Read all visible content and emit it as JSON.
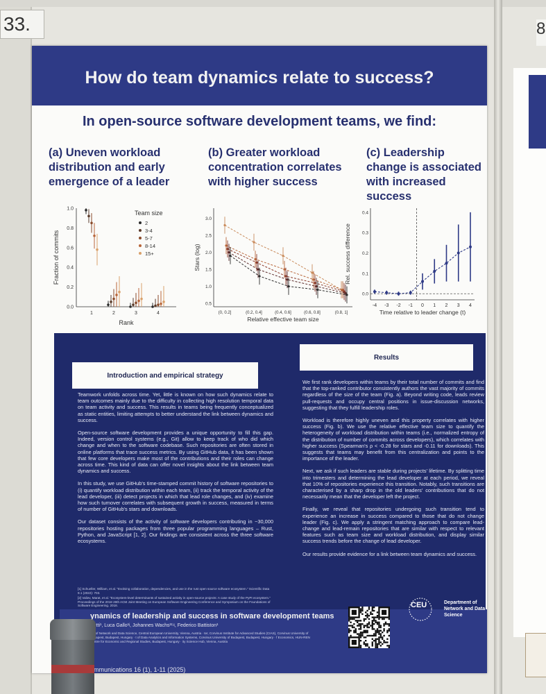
{
  "environment": {
    "poster_number": "33.",
    "next_poster_number": "8"
  },
  "poster": {
    "title": "How do team dynamics relate to success?",
    "subtitle": "In open-source software development teams, we find:",
    "panels": [
      {
        "heading": "(a) Uneven workload distribution and early emergence of a leader"
      },
      {
        "heading": "(b) Greater workload concentration correlates with higher success"
      },
      {
        "heading": "(c) Leadership change is associated with increased success"
      }
    ],
    "chart_a": {
      "type": "scatter",
      "xlabel": "Rank",
      "ylabel": "Fraction of commits",
      "x_ticks": [
        "1",
        "2",
        "3",
        "4"
      ],
      "y_ticks": [
        "0.0",
        "0.2",
        "0.4",
        "0.6",
        "0.8",
        "1.0"
      ],
      "ylim": [
        0,
        1.0
      ],
      "legend_title": "Team size",
      "legend": [
        "2",
        "3-4",
        "5-7",
        "8-14",
        "15+"
      ],
      "colors": [
        "#2b2b2b",
        "#5a3a2a",
        "#8a4a2a",
        "#b8663a",
        "#d9a06a"
      ],
      "series": [
        {
          "name": "2",
          "values": [
            0.98,
            0.02,
            0.0,
            0.0
          ]
        },
        {
          "name": "3-4",
          "values": [
            0.92,
            0.05,
            0.02,
            0.01
          ]
        },
        {
          "name": "5-7",
          "values": [
            0.85,
            0.08,
            0.04,
            0.02
          ]
        },
        {
          "name": "8-14",
          "values": [
            0.72,
            0.12,
            0.06,
            0.03
          ]
        },
        {
          "name": "15+",
          "values": [
            0.58,
            0.15,
            0.08,
            0.05
          ]
        }
      ]
    },
    "chart_b": {
      "type": "line",
      "xlabel": "Relative effective team size",
      "ylabel": "Stars (log)",
      "x_ticks": [
        "(0, 0.2]",
        "(0.2, 0.4]",
        "(0.4, 0.6]",
        "(0.6, 0.8]",
        "(0.8, 1]"
      ],
      "y_ticks": [
        "0.5",
        "1.0",
        "1.5",
        "2.0",
        "2.5",
        "3.0"
      ],
      "ylim": [
        0.4,
        3.3
      ],
      "colors": [
        "#c98a5a",
        "#b8663a",
        "#8a3a2a",
        "#5a2a2a",
        "#2b2b2b"
      ],
      "series": [
        {
          "values": [
            2.8,
            2.3,
            1.9,
            1.4,
            0.9
          ]
        },
        {
          "values": [
            2.2,
            1.8,
            1.5,
            1.2,
            0.9
          ]
        },
        {
          "values": [
            2.1,
            1.7,
            1.3,
            1.1,
            0.85
          ]
        },
        {
          "values": [
            2.0,
            1.5,
            1.2,
            1.0,
            0.8
          ]
        },
        {
          "values": [
            1.9,
            1.3,
            1.0,
            0.9,
            0.75
          ]
        }
      ]
    },
    "chart_c": {
      "type": "line",
      "xlabel": "Time relative to leader change (t)",
      "ylabel": "Rel. success difference",
      "x": [
        -4,
        -3,
        -2,
        -1,
        0,
        1,
        2,
        3,
        4
      ],
      "x_ticks": [
        "-4",
        "-3",
        "-2",
        "-1",
        "0",
        "1",
        "2",
        "3",
        "4"
      ],
      "y_ticks": [
        "0.0",
        "0.1",
        "0.2",
        "0.3",
        "0.4"
      ],
      "ylim": [
        -0.03,
        0.42
      ],
      "values": [
        0.01,
        0.005,
        0.0,
        0.005,
        0.06,
        0.11,
        0.15,
        0.2,
        0.23
      ],
      "err": [
        0.01,
        0.01,
        0.01,
        0.01,
        0.04,
        0.06,
        0.09,
        0.14,
        0.17
      ],
      "color": "#2e3a86"
    },
    "intro": {
      "heading": "Introduction and empirical strategy",
      "paragraphs": [
        "Teamwork unfolds across time. Yet, little is known on how such dynamics relate to team outcomes mainly due to the difficulty in collecting high resolution temporal data on team activity and success. This results in teams being frequently conceptualized as static entities, limiting attempts to better understand the link between dynamics and success.",
        "Open-source software development provides a unique opportunity to fill this gap. Indeed, version control systems (e.g., Git) allow to keep track of who did which change and when to the software codebase. Such repositories are often stored in online platforms that trace success metrics. By using GitHub data, it has been shown that few core developers make most of the contributions and their roles can change across time. This kind of data can offer novel insights about the link between team dynamics and success.",
        "In this study, we use GitHub's time-stamped commit history of software repositories to (i) quantify workload distribution within each team, (ii) track the temporal activity of the lead developer, (iii) detect projects in which that lead role changes, and (iv) examine how such turnover correlates with subsequent growth in success, measured in terms of number of GitHub's stars and downloads.",
        "Our dataset consists of the activity of software developers contributing in ~30,000 repositories hosting packages from three popular programming languages – Rust, Python, and JavaScript [1, 2]. Our findings are consistent across the three software ecosystems."
      ]
    },
    "references": [
      "[1] Schueller, William, et al. \"Evolving collaboration, dependencies, and use in the rust open source software ecosystem.\" Scientific Data 9.1 (2022): 703.",
      "[2] Valiev, Marat, et al. \"Ecosystem-level determinants of sustained activity in open-source projects: A case study of the PyPI ecosystem.\" Proceedings of the 2018 26th ACM Joint Meeting on European Software Engineering Conference and Symposium on the Foundations of Software Engineering. 2018."
    ],
    "results": {
      "heading": "Results",
      "paragraphs": [
        "We first rank developers within teams by their total number of commits and find that the top-ranked contributor consistently authors the vast majority of commits regardless of the size of the team (Fig. a). Beyond writing code, leads review pull-requests and occupy central positions in issue-discussion networks, suggesting that they fulfill leadership roles.",
        "Workload is therefore highly uneven and this property correlates with higher success (Fig. b). We use the relative effective team size to quantify the heterogeneity of workload distribution within teams (i.e., normalized entropy of the distribution of number of commits across developers), which correlates with higher success (Spearman's ρ < -0.28 for stars and -0.11 for downloads). This suggests that teams may benefit from this centralization and points to the importance of the leader.",
        "Next, we ask if such leaders are stable during projects' lifetime. By splitting time into trimesters and determining the lead developer at each period, we reveal that 10% of repositories experience this transition. Notably, such transitions are characterised by a sharp drop in the old leaders' contributions that do not necessarily mean that the developer left the project.",
        "Finally, we reveal that repositories undergoing such transition tend to experience an increase in success compared to those that do not change leader (Fig. c). We apply a stringent matching approach to compare lead-change and lead-remain repositories that are similar with respect to relevant features such as team size and workload distribution, and display similar success trends before the change of lead developer.",
        "Our results provide evidence for a link between team dynamics and success."
      ]
    },
    "footer": {
      "paper_title": "ynamics of leadership and success in software development teams",
      "authors": "Betti¹, Luca Gallo¹ʲ, Johannes Wachs²ʳʴʵ, Federico Battiston¹",
      "affiliations": "ent of Network and Data Science, Central European University, Vienna, Austria · ter, Corvinus Institute for Advanced Studies (CIAS), Corvinus University of Budapest, Budapest, Hungary · t of Data Analytics and Information Systems, Corvinus University of Budapest, Budapest, Hungary · f Economics, HUN-REN Centre for Economic and Regional Studies, Budapest, Hungary · ity Science Hub, Vienna, Austria",
      "journal": "ommunications 16 (1), 1-11 (2025)",
      "logo_text": "CEU",
      "department": "Department of Network and Data Science"
    }
  }
}
